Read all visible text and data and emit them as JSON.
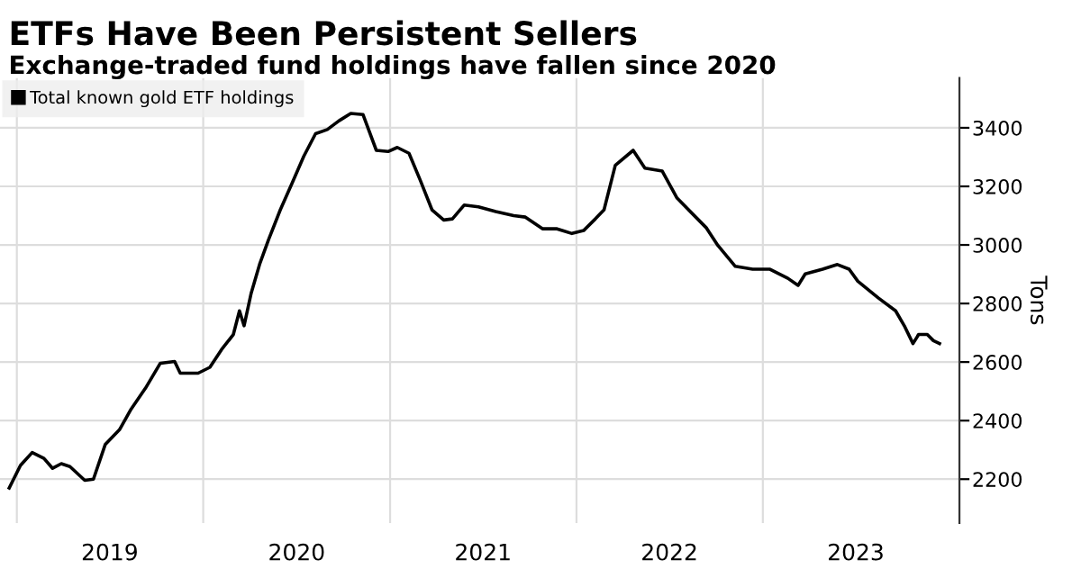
{
  "chart_data": {
    "type": "line",
    "title": "ETFs Have Been Persistent Sellers",
    "subtitle": "Exchange-traded fund holdings have fallen since 2020",
    "ylabel": "Tons",
    "x": [
      "2018-12-17",
      "2019-01-08",
      "2019-01-31",
      "2019-02-23",
      "2019-03-12",
      "2019-03-29",
      "2019-04-15",
      "2019-05-14",
      "2019-05-31",
      "2019-06-23",
      "2019-07-21",
      "2019-08-13",
      "2019-09-10",
      "2019-10-09",
      "2019-11-06",
      "2019-11-17",
      "2019-12-22",
      "2020-01-14",
      "2020-02-06",
      "2020-02-29",
      "2020-03-12",
      "2020-03-21",
      "2020-04-04",
      "2020-04-21",
      "2020-05-08",
      "2020-05-31",
      "2020-06-23",
      "2020-07-16",
      "2020-08-08",
      "2020-08-31",
      "2020-09-23",
      "2020-10-16",
      "2020-11-09",
      "2020-12-05",
      "2020-12-28",
      "2021-01-15",
      "2021-02-07",
      "2021-03-01",
      "2021-03-24",
      "2021-04-16",
      "2021-05-03",
      "2021-05-26",
      "2021-06-23",
      "2021-07-27",
      "2021-08-31",
      "2021-09-23",
      "2021-10-27",
      "2021-11-24",
      "2021-12-23",
      "2022-01-15",
      "2022-02-07",
      "2022-02-24",
      "2022-03-18",
      "2022-04-22",
      "2022-05-15",
      "2022-06-18",
      "2022-07-17",
      "2022-09-12",
      "2022-10-05",
      "2022-11-08",
      "2022-12-12",
      "2023-01-15",
      "2023-02-19",
      "2023-03-11",
      "2023-03-25",
      "2023-04-28",
      "2023-05-27",
      "2023-06-19",
      "2023-07-06",
      "2023-08-15",
      "2023-09-18",
      "2023-10-05",
      "2023-10-22",
      "2023-11-02",
      "2023-11-19",
      "2023-12-01",
      "2023-12-13"
    ],
    "series": [
      {
        "name": "Total known gold ETF holdings",
        "color": "#000000",
        "values": [
          2170,
          2247,
          2291,
          2271,
          2237,
          2253,
          2243,
          2196,
          2200,
          2318,
          2369,
          2440,
          2511,
          2596,
          2602,
          2562,
          2562,
          2582,
          2643,
          2694,
          2775,
          2724,
          2836,
          2937,
          3018,
          3120,
          3211,
          3303,
          3380,
          3394,
          3424,
          3449,
          3445,
          3323,
          3319,
          3333,
          3313,
          3221,
          3120,
          3085,
          3089,
          3136,
          3130,
          3114,
          3100,
          3095,
          3055,
          3055,
          3039,
          3049,
          3089,
          3120,
          3272,
          3323,
          3262,
          3252,
          3160,
          3059,
          2998,
          2927,
          2917,
          2917,
          2886,
          2862,
          2901,
          2917,
          2933,
          2917,
          2876,
          2819,
          2775,
          2724,
          2663,
          2694,
          2694,
          2673,
          2663
        ]
      }
    ],
    "xlim": [
      "2018-11-29",
      "2024-01-21"
    ],
    "ylim": [
      2050,
      3570
    ],
    "xticks": [
      {
        "value": "2019-01-01",
        "label": null
      },
      {
        "value": "2019-07-02",
        "label": "2019"
      },
      {
        "value": "2020-01-01",
        "label": null
      },
      {
        "value": "2020-07-02",
        "label": "2020"
      },
      {
        "value": "2021-01-01",
        "label": null
      },
      {
        "value": "2021-07-02",
        "label": "2021"
      },
      {
        "value": "2022-01-01",
        "label": null
      },
      {
        "value": "2022-07-02",
        "label": "2022"
      },
      {
        "value": "2023-01-01",
        "label": null
      },
      {
        "value": "2023-07-02",
        "label": "2023"
      }
    ],
    "yticks": [
      2200,
      2400,
      2600,
      2800,
      3000,
      3200,
      3400
    ],
    "grid": true,
    "legend": "top left",
    "marker": "none",
    "line_style": "solid"
  }
}
